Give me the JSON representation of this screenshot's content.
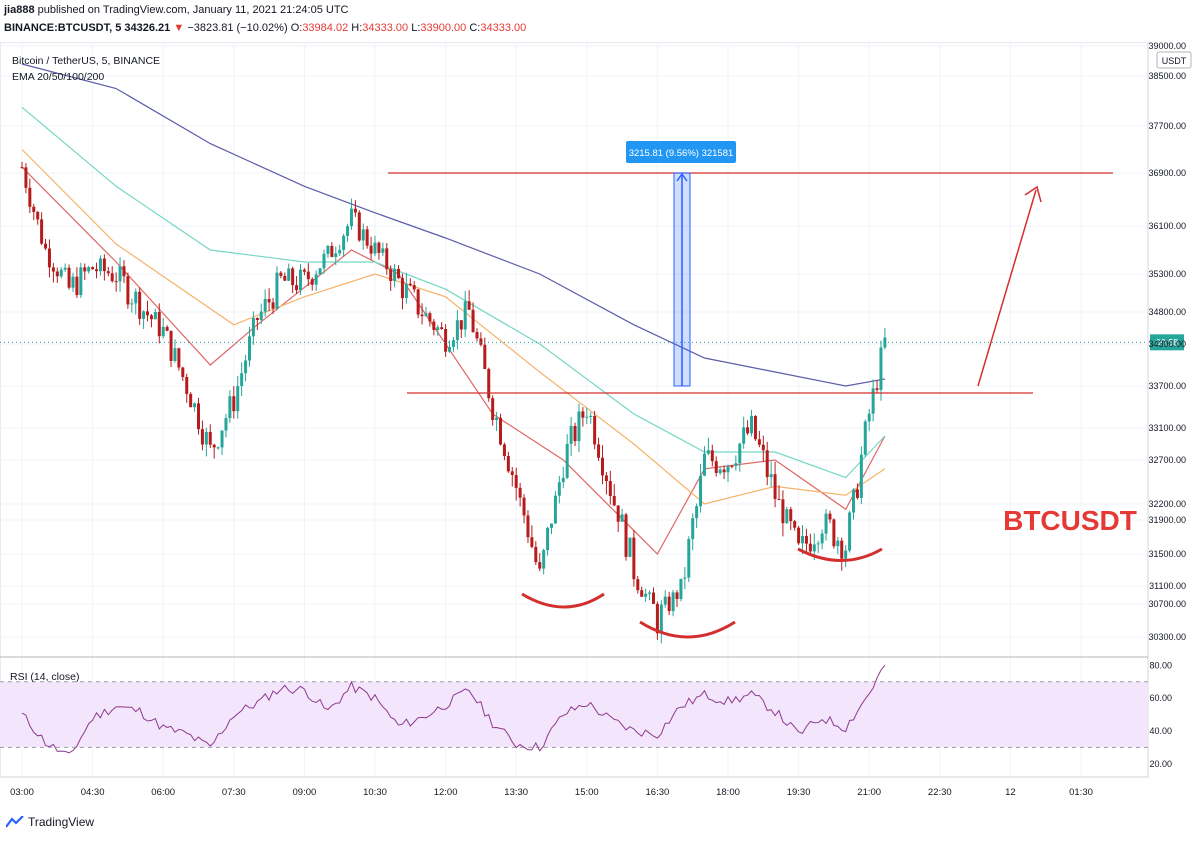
{
  "header": {
    "author": "jia888",
    "published": "published on TradingView.com, January 11, 2021 21:24:05 UTC",
    "symbol": "BINANCE:BTCUSDT, 5",
    "last": "34326.21",
    "change_arrow": "▼",
    "change": "−3823.81 (−10.02%)",
    "o_label": "O:",
    "o_val": "33984.02",
    "h_label": "H:",
    "h_val": "34333.00",
    "l_label": "L:",
    "l_val": "33900.00",
    "c_label": "C:",
    "c_val": "34333.00"
  },
  "legend": {
    "line1": "Bitcoin / TetherUS, 5, BINANCE",
    "line2": "EMA 20/50/100/200",
    "rsi": "RSI (14, close)"
  },
  "annotations": {
    "measure": "3215.81 (9.56%) 321581",
    "watermark": "BTCUSDT",
    "price_tag": "00:58",
    "currency": "USDT"
  },
  "footer": {
    "brand": "TradingView",
    "icon": "tradingview-logo-icon"
  },
  "colors": {
    "up": "#26a69a",
    "down": "#b71c1c",
    "ema20": "#e06666",
    "ema50": "#f6b26b",
    "ema100": "#76d7c4",
    "ema200": "#5c5caa",
    "annot": "#d32f2f",
    "rsi": "#8e3a8e",
    "rsi_band": "#f3e5fb"
  },
  "chart_data": [
    {
      "type": "candlestick",
      "title": "Bitcoin / TetherUS, 5, BINANCE",
      "x_ticks": [
        "03:00",
        "04:30",
        "06:00",
        "07:30",
        "09:00",
        "10:30",
        "12:00",
        "13:30",
        "15:00",
        "16:30",
        "18:00",
        "19:30",
        "21:00",
        "22:30",
        "12",
        "01:30"
      ],
      "y_ticks": [
        39000,
        38500,
        37700,
        36900,
        36100,
        35300,
        34800,
        34300,
        33700,
        33100,
        32700,
        32200,
        31900,
        31500,
        31100,
        30700,
        30300
      ],
      "ylim": [
        30000,
        39000
      ],
      "close_path": {
        "t": [
          "03:00",
          "03:30",
          "04:00",
          "04:30",
          "05:00",
          "05:30",
          "06:00",
          "06:30",
          "07:00",
          "07:30",
          "08:00",
          "08:30",
          "09:00",
          "09:30",
          "10:00",
          "10:30",
          "11:00",
          "11:30",
          "12:00",
          "12:30",
          "13:00",
          "13:30",
          "14:00",
          "14:30",
          "15:00",
          "15:30",
          "16:00",
          "16:30",
          "17:00",
          "17:30",
          "18:00",
          "18:30",
          "19:00",
          "19:30",
          "20:00",
          "20:30",
          "21:00",
          "21:20"
        ],
        "price": [
          37000,
          35700,
          35100,
          35400,
          35300,
          34900,
          34500,
          33700,
          32800,
          33500,
          34700,
          35200,
          35200,
          35600,
          36200,
          35700,
          35200,
          34800,
          34400,
          34800,
          33400,
          32400,
          31200,
          32700,
          33400,
          32400,
          31300,
          30500,
          31000,
          32700,
          32700,
          33100,
          32300,
          31500,
          31900,
          31600,
          33300,
          34326
        ]
      },
      "series": [
        {
          "name": "EMA 20",
          "t": [
            "03:00",
            "05:00",
            "07:00",
            "08:00",
            "10:00",
            "11:00",
            "13:00",
            "14:30",
            "16:30",
            "17:30",
            "19:00",
            "20:30",
            "21:20"
          ],
          "values": [
            37000,
            35500,
            34000,
            34600,
            35700,
            35300,
            33300,
            32700,
            31500,
            32600,
            32700,
            32100,
            33000
          ]
        },
        {
          "name": "EMA 50",
          "t": [
            "03:00",
            "05:00",
            "07:30",
            "09:00",
            "10:30",
            "12:00",
            "14:00",
            "16:00",
            "17:30",
            "19:00",
            "20:30",
            "21:20"
          ],
          "values": [
            37300,
            35800,
            34600,
            35000,
            35300,
            35000,
            33900,
            32900,
            32200,
            32400,
            32300,
            32600
          ]
        },
        {
          "name": "EMA 100",
          "t": [
            "03:00",
            "05:00",
            "07:00",
            "09:00",
            "10:30",
            "12:00",
            "14:00",
            "16:00",
            "17:30",
            "19:00",
            "20:30",
            "21:20"
          ],
          "values": [
            38000,
            36700,
            35700,
            35500,
            35500,
            35100,
            34300,
            33300,
            32800,
            32800,
            32500,
            33000
          ]
        },
        {
          "name": "EMA 200",
          "t": [
            "03:00",
            "05:00",
            "07:00",
            "09:00",
            "10:30",
            "12:00",
            "14:00",
            "16:00",
            "17:30",
            "19:00",
            "20:30",
            "21:20"
          ],
          "values": [
            38700,
            38300,
            37400,
            36700,
            36300,
            35900,
            35300,
            34600,
            34100,
            33900,
            33700,
            33800
          ]
        }
      ],
      "levels": {
        "neckline": 33600,
        "target": 36900
      },
      "measure": {
        "from": 33700,
        "to": 36900,
        "label": "3215.81 (9.56%) 321581"
      },
      "last_price": 34326.21
    },
    {
      "type": "line",
      "title": "RSI (14, close)",
      "y_ticks": [
        80,
        60,
        40,
        20
      ],
      "ylim": [
        15,
        82
      ],
      "band": [
        30,
        70
      ],
      "series": [
        {
          "name": "RSI",
          "t": [
            "03:00",
            "03:30",
            "04:00",
            "04:30",
            "05:00",
            "05:30",
            "06:00",
            "06:30",
            "07:00",
            "07:30",
            "08:00",
            "08:30",
            "09:00",
            "09:30",
            "10:00",
            "10:30",
            "11:00",
            "11:30",
            "12:00",
            "12:30",
            "13:00",
            "13:30",
            "14:00",
            "14:30",
            "15:00",
            "15:30",
            "16:00",
            "16:30",
            "17:00",
            "17:30",
            "18:00",
            "18:30",
            "19:00",
            "19:30",
            "20:00",
            "20:30",
            "21:00",
            "21:20"
          ],
          "values": [
            50,
            33,
            24,
            48,
            55,
            52,
            42,
            38,
            30,
            50,
            57,
            66,
            65,
            52,
            67,
            60,
            43,
            48,
            56,
            65,
            45,
            32,
            30,
            50,
            57,
            47,
            40,
            38,
            55,
            62,
            58,
            62,
            52,
            38,
            48,
            42,
            63,
            80
          ]
        }
      ]
    }
  ]
}
